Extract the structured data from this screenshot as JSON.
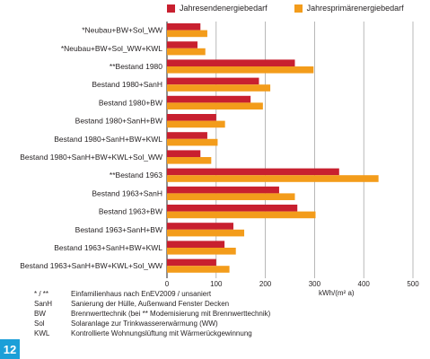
{
  "figure_number": "12",
  "legend": {
    "items": [
      {
        "label": "Jahresendenergiebedarf",
        "color": "#c8202f"
      },
      {
        "label": "Jahresprimärenergiebedarf",
        "color": "#f39c1b"
      }
    ]
  },
  "unit_label": "kWh/(m² a)",
  "notes": [
    {
      "abbr": "* / **",
      "text": "Einfamilienhaus nach EnEV2009  / unsaniert"
    },
    {
      "abbr": "SanH",
      "text": "Sanierung der Hülle, Außenwand Fenster Decken"
    },
    {
      "abbr": "BW",
      "text": "Brennwerttechnik (bei ** Modemisierung mit Brennwerttechnik)"
    },
    {
      "abbr": "Sol",
      "text": "Solaranlage zur Trinkwassererwärmung (WW)"
    },
    {
      "abbr": "KWL",
      "text": "Kontrollierte Wohnungslüftung mit Wärmerückgewinnung"
    }
  ],
  "chart_data": {
    "type": "bar",
    "orientation": "horizontal",
    "categories": [
      "*Neubau+BW+Sol_WW",
      "*Neubau+BW+Sol_WW+KWL",
      "**Bestand 1980",
      "Bestand 1980+SanH",
      "Bestand 1980+BW",
      "Bestand 1980+SanH+BW",
      "Bestand 1980+SanH+BW+KWL",
      "Bestand 1980+SanH+BW+KWL+Sol_WW",
      "**Bestand 1963",
      "Bestand 1963+SanH",
      "Bestand 1963+BW",
      "Bestand 1963+SanH+BW",
      "Bestand 1963+SanH+BW+KWL",
      "Bestand 1963+SanH+BW+KWL+Sol_WW"
    ],
    "series": [
      {
        "name": "Jahresendenergiebedarf",
        "color": "#c8202f",
        "values": [
          68,
          62,
          260,
          187,
          170,
          100,
          82,
          68,
          350,
          228,
          265,
          135,
          117,
          100
        ]
      },
      {
        "name": "Jahresprimärenergiebedarf",
        "color": "#f39c1b",
        "values": [
          82,
          78,
          298,
          210,
          195,
          118,
          103,
          90,
          430,
          260,
          302,
          157,
          140,
          127
        ]
      }
    ],
    "xlim": [
      0,
      500
    ],
    "xticks": [
      "0",
      "100",
      "200",
      "300",
      "400",
      "500"
    ],
    "grid": true
  }
}
